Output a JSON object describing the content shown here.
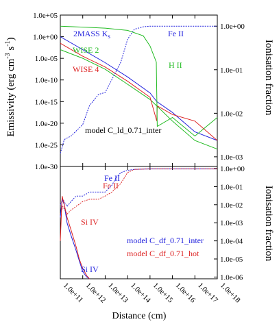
{
  "chart_data": [
    {
      "type": "line",
      "panel": "top",
      "x_scale": "log",
      "xlim": [
        100000000000.0,
        1e+18
      ],
      "left_axis": {
        "label": "Emissivity (erg cm",
        "label_sup1": "-3",
        "label_mid": " s",
        "label_sup2": "-1",
        "label_end": ")",
        "scale": "log",
        "ylim": [
          1e-30,
          100000.0
        ],
        "ticks": [
          "1.0e+05",
          "1.0e+00",
          "1.0e-05",
          "1.0e-10",
          "1.0e-15",
          "1.0e-20",
          "1.0e-25",
          "1.0e-30"
        ],
        "tick_values": [
          100000.0,
          1,
          1e-05,
          1e-10,
          1e-15,
          1e-20,
          1e-25,
          1e-30
        ]
      },
      "right_axis": {
        "label": "Ionisation fraction",
        "scale": "log",
        "ylim": [
          0.0006,
          1.8
        ],
        "ticks": [
          "1.0e+00",
          "1.0e-01",
          "1.0e-02",
          "1.0e-03"
        ],
        "tick_values": [
          1,
          0.1,
          0.01,
          0.001
        ]
      },
      "annotation": "model C_ld_0.71_inter",
      "series": [
        {
          "name": "2MASS K",
          "name_sub": "s",
          "axis": "left",
          "color": "#2222dd",
          "x": [
            100000000000.0,
            1000000000000.0,
            10000000000000.0,
            100000000000000.0,
            1000000000000000.0,
            2000000000000000.0,
            1e+16,
            1e+17,
            1e+18
          ],
          "y": [
            1,
            0.001,
            1e-06,
            5e-10,
            1e-13,
            1e-15,
            3e-18,
            1e-22,
            1e-24
          ]
        },
        {
          "name": "WISE 2",
          "axis": "left",
          "color": "#22bb22",
          "x": [
            100000000000.0,
            1000000000000.0,
            10000000000000.0,
            100000000000000.0,
            1000000000000000.0,
            2000000000000000.0,
            1e+16,
            1e+17,
            1e+18
          ],
          "y": [
            0.001,
            1e-05,
            3e-08,
            1e-11,
            3e-15,
            1e-16,
            3e-20,
            1e-24,
            1e-26
          ]
        },
        {
          "name": "WISE 4",
          "axis": "left",
          "color": "#dd2222",
          "x": [
            100000000000.0,
            1000000000000.0,
            10000000000000.0,
            100000000000000.0,
            1000000000000000.0,
            2000000000000000.0,
            2100000000000000.0,
            1e+16,
            1e+17,
            1e+18
          ],
          "y": [
            0.03,
            3e-05,
            1e-07,
            5e-11,
            1e-14,
            3e-20,
            1e-16,
            1e-18,
            3e-20,
            1e-24
          ]
        },
        {
          "name": "Fe II",
          "axis": "right",
          "color": "#2222dd",
          "x": [
            100000000000.0,
            150000000000.0,
            300000000000.0,
            1000000000000.0,
            2000000000000.0,
            5000000000000.0,
            10000000000000.0,
            20000000000000.0,
            50000000000000.0,
            100000000000000.0,
            200000000000000.0,
            500000000000000.0,
            1000000000000000.0,
            1e+16,
            1e+17,
            1e+18
          ],
          "y": [
            0.0012,
            0.0025,
            0.003,
            0.0055,
            0.015,
            0.027,
            0.03,
            0.06,
            0.15,
            0.5,
            0.85,
            0.97,
            1,
            1,
            1,
            1
          ]
        },
        {
          "name": "H II",
          "axis": "right",
          "color": "#22bb22",
          "x": [
            100000000000.0,
            1000000000000.0,
            10000000000000.0,
            100000000000000.0,
            500000000000000.0,
            1000000000000000.0,
            1900000000000000.0,
            2100000000000000.0,
            1e+16,
            1e+17,
            1e+18
          ],
          "y": [
            1,
            0.95,
            0.9,
            0.8,
            0.6,
            0.35,
            0.15,
            0.005,
            0.008,
            0.003,
            0.008
          ]
        }
      ]
    },
    {
      "type": "line",
      "panel": "bottom",
      "x_scale": "log",
      "xlim": [
        100000000000.0,
        1e+18
      ],
      "xlabel": "Distance (cm)",
      "x_ticks": [
        "1.0e+11",
        "1.0e+12",
        "1.0e+13",
        "1.0e+14",
        "1.0e+15",
        "1.0e+16",
        "1.0e+17",
        "1.0e+18"
      ],
      "x_tick_values": [
        100000000000.0,
        1000000000000.0,
        10000000000000.0,
        100000000000000.0,
        1000000000000000.0,
        1e+16,
        1e+17,
        1e+18
      ],
      "right_axis": {
        "label": "Ionisation fraction",
        "scale": "log",
        "ylim": [
          8e-07,
          1.3
        ],
        "ticks": [
          "1.0e+00",
          "1.0e-01",
          "1.0e-02",
          "1.0e-03",
          "1.0e-04",
          "1.0e-05",
          "1.0e-06"
        ],
        "tick_values": [
          1,
          0.1,
          0.01,
          0.001,
          0.0001,
          1e-05,
          1e-06
        ]
      },
      "legend": [
        {
          "text": "model C_df_0.71_inter",
          "color": "#2222dd"
        },
        {
          "text": "model C_df_0.71_hot",
          "color": "#dd2222"
        }
      ],
      "labels": [
        {
          "text": "Fe II",
          "color": "#2222dd"
        },
        {
          "text": "Fe II",
          "color": "#dd2222"
        },
        {
          "text": "Si IV",
          "color": "#dd2222"
        },
        {
          "text": "Si IV",
          "color": "#2222dd"
        }
      ],
      "series": [
        {
          "model": "C_df_0.71_inter",
          "ion": "Fe II",
          "color": "#2222dd",
          "x": [
            100000000000.0,
            130000000000.0,
            200000000000.0,
            300000000000.0,
            500000000000.0,
            1000000000000.0,
            2000000000000.0,
            5000000000000.0,
            10000000000000.0,
            20000000000000.0,
            30000000000000.0,
            50000000000000.0,
            100000000000000.0,
            200000000000000.0,
            1000000000000000.0,
            1e+16,
            1e+17,
            1e+18
          ],
          "y": [
            0.01,
            0.02,
            0.008,
            0.015,
            0.03,
            0.03,
            0.05,
            0.05,
            0.05,
            0.12,
            0.3,
            0.6,
            0.8,
            0.9,
            0.95,
            0.95,
            0.95,
            0.95
          ]
        },
        {
          "model": "C_df_0.71_hot",
          "ion": "Fe II",
          "color": "#dd2222",
          "x": [
            100000000000.0,
            130000000000.0,
            200000000000.0,
            300000000000.0,
            500000000000.0,
            1000000000000.0,
            2000000000000.0,
            5000000000000.0,
            10000000000000.0,
            20000000000000.0,
            50000000000000.0,
            100000000000000.0,
            200000000000000.0,
            1000000000000000.0,
            1e+16,
            1e+17,
            1e+18
          ],
          "y": [
            0.003,
            0.008,
            0.003,
            0.005,
            0.008,
            0.015,
            0.02,
            0.02,
            0.03,
            0.05,
            0.15,
            0.6,
            0.9,
            0.95,
            0.95,
            0.95,
            0.95
          ]
        },
        {
          "model": "C_df_0.71_inter",
          "ion": "Si IV",
          "color": "#2222dd",
          "x": [
            100000000000.0,
            120000000000.0,
            150000000000.0,
            200000000000.0,
            300000000000.0,
            500000000000.0,
            700000000000.0,
            1000000000000.0,
            1500000000000.0,
            2000000000000.0
          ],
          "y": [
            0.002,
            0.02,
            0.01,
            0.001,
            0.0002,
            3e-05,
            8e-06,
            2e-06,
            1e-06,
            8e-07
          ]
        },
        {
          "model": "C_df_0.71_hot",
          "ion": "Si IV",
          "color": "#dd2222",
          "x": [
            100000000000.0,
            120000000000.0,
            150000000000.0,
            200000000000.0,
            300000000000.0,
            500000000000.0,
            700000000000.0,
            1000000000000.0,
            1500000000000.0,
            2000000000000.0
          ],
          "y": [
            0.0001,
            0.03,
            0.01,
            0.002,
            0.0004,
            5e-05,
            1e-05,
            3e-06,
            1.2e-06,
            8e-07
          ]
        }
      ]
    }
  ]
}
